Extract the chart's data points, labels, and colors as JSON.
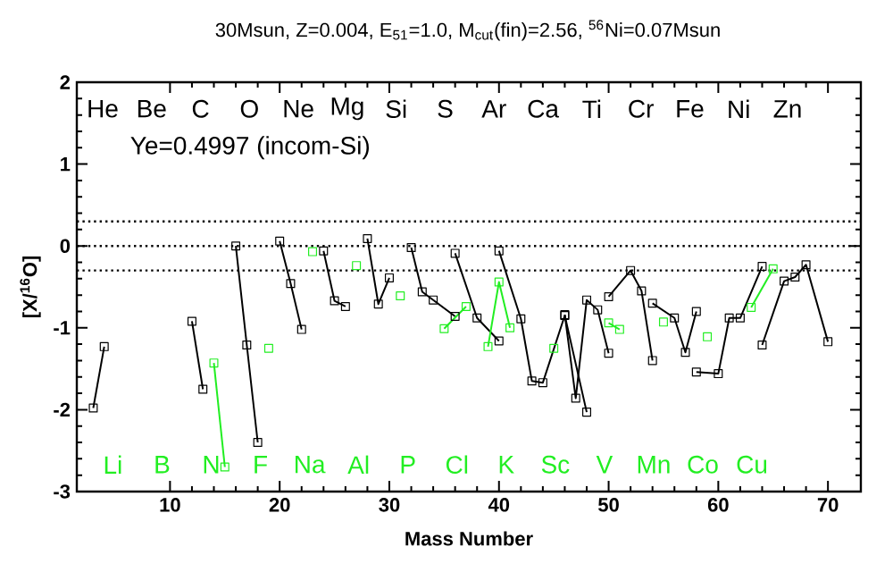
{
  "chart_data": {
    "type": "line",
    "title": "30Msun, Z=0.004, E$_{51}$=1.0, M$_{cut}$(fin)=2.56, $^{56}$Ni=0.07Msun",
    "xlabel": "Mass Number",
    "ylabel": "[X/$^{16}$O]",
    "annotations": [
      "Ye=0.4997 (incom-Si)",
      "He",
      "Li",
      "Be",
      "B",
      "C",
      "N",
      "O",
      "F",
      "Ne",
      "Na",
      "Mg",
      "Al",
      "Si",
      "P",
      "S",
      "Cl",
      "Ar",
      "K",
      "Ca",
      "Sc",
      "Ti",
      "V",
      "Cr",
      "Mn",
      "Fe",
      "Co",
      "Ni",
      "Cu",
      "Zn"
    ],
    "xlim": [
      1.5,
      73
    ],
    "xticks": [
      10,
      20,
      30,
      40,
      50,
      60,
      70
    ],
    "ylim": [
      -3,
      2
    ],
    "yticks": [
      -3,
      -2,
      -1,
      0,
      1,
      2
    ],
    "marker": "square",
    "line_style": "solid",
    "ref_lines": [
      {
        "axis": "y",
        "value": 0.3,
        "line_style": "dotted"
      },
      {
        "axis": "y",
        "value": 0,
        "line_style": "dotted"
      },
      {
        "axis": "y",
        "value": -0.3,
        "line_style": "dotted"
      }
    ],
    "series": [
      {
        "color": "#000000",
        "x": [
          3,
          4
        ],
        "values": [
          -1.98,
          -1.23
        ]
      },
      {
        "color": "#000000",
        "x": [
          12,
          13
        ],
        "values": [
          -0.92,
          -1.75
        ]
      },
      {
        "color": "#22ee22",
        "x": [
          14,
          15
        ],
        "values": [
          -1.43,
          -2.7
        ]
      },
      {
        "color": "#000000",
        "x": [
          16,
          17,
          18
        ],
        "values": [
          0.0,
          -1.21,
          -2.4
        ]
      },
      {
        "color": "#22ee22",
        "x": [
          19
        ],
        "values": [
          -1.25
        ]
      },
      {
        "color": "#000000",
        "x": [
          20,
          21,
          22
        ],
        "values": [
          0.06,
          -0.46,
          -1.02
        ]
      },
      {
        "color": "#22ee22",
        "x": [
          23
        ],
        "values": [
          -0.07
        ]
      },
      {
        "color": "#000000",
        "x": [
          24,
          25,
          26
        ],
        "values": [
          -0.06,
          -0.67,
          -0.74
        ]
      },
      {
        "color": "#22ee22",
        "x": [
          27
        ],
        "values": [
          -0.24
        ]
      },
      {
        "color": "#000000",
        "x": [
          28,
          29,
          30
        ],
        "values": [
          0.09,
          -0.71,
          -0.39
        ]
      },
      {
        "color": "#22ee22",
        "x": [
          31
        ],
        "values": [
          -0.61
        ]
      },
      {
        "color": "#000000",
        "x": [
          32,
          33,
          34,
          36
        ],
        "values": [
          -0.02,
          -0.56,
          -0.66,
          -0.86
        ]
      },
      {
        "color": "#22ee22",
        "x": [
          35,
          37
        ],
        "values": [
          -1.01,
          -0.74
        ]
      },
      {
        "color": "#000000",
        "x": [
          36,
          38,
          40
        ],
        "values": [
          -0.09,
          -0.88,
          -1.16
        ]
      },
      {
        "color": "#22ee22",
        "x": [
          39,
          40,
          41
        ],
        "values": [
          -1.23,
          -0.44,
          -1.0
        ]
      },
      {
        "color": "#000000",
        "x": [
          40,
          42,
          43,
          44,
          46,
          48
        ],
        "values": [
          -0.06,
          -0.89,
          -1.65,
          -1.67,
          -0.85,
          -2.03
        ]
      },
      {
        "color": "#22ee22",
        "x": [
          45
        ],
        "values": [
          -1.25
        ]
      },
      {
        "color": "#000000",
        "x": [
          46,
          47,
          48,
          49,
          50
        ],
        "values": [
          -0.84,
          -1.86,
          -0.66,
          -0.78,
          -1.31
        ]
      },
      {
        "color": "#22ee22",
        "x": [
          50,
          51
        ],
        "values": [
          -0.94,
          -1.02
        ]
      },
      {
        "color": "#000000",
        "x": [
          50,
          52,
          53,
          54
        ],
        "values": [
          -0.62,
          -0.3,
          -0.55,
          -1.4
        ]
      },
      {
        "color": "#22ee22",
        "x": [
          55
        ],
        "values": [
          -0.93
        ]
      },
      {
        "color": "#000000",
        "x": [
          54,
          56,
          57,
          58
        ],
        "values": [
          -0.7,
          -0.88,
          -1.3,
          -0.8
        ]
      },
      {
        "color": "#22ee22",
        "x": [
          59
        ],
        "values": [
          -1.11
        ]
      },
      {
        "color": "#000000",
        "x": [
          58,
          60,
          61,
          62,
          64
        ],
        "values": [
          -1.54,
          -1.56,
          -0.88,
          -0.88,
          -0.25
        ]
      },
      {
        "color": "#22ee22",
        "x": [
          63,
          65
        ],
        "values": [
          -0.75,
          -0.28
        ]
      },
      {
        "color": "#000000",
        "x": [
          64,
          66,
          67,
          68,
          70
        ],
        "values": [
          -1.21,
          -0.43,
          -0.38,
          -0.23,
          -1.17
        ]
      }
    ]
  }
}
